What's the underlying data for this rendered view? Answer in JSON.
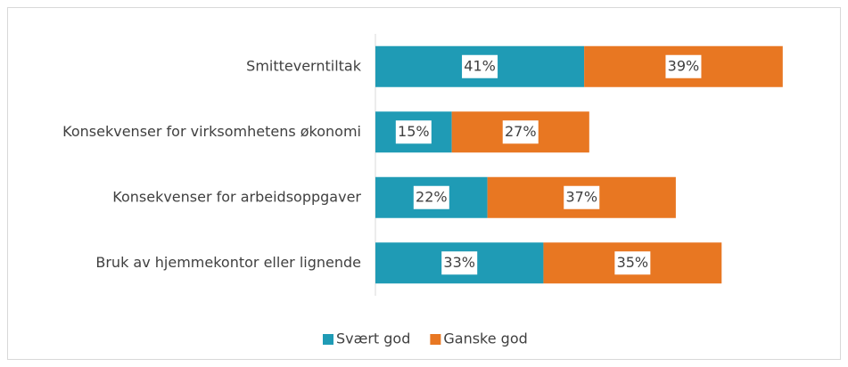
{
  "chart_data": {
    "type": "bar",
    "orientation": "horizontal",
    "stacked": true,
    "categories": [
      "Smitteverntiltak",
      "Konsekvenser for virksomhetens økonomi",
      "Konsekvenser for arbeidsoppgaver",
      "Bruk av hjemmekontor eller lignende"
    ],
    "series": [
      {
        "name": "Svært god",
        "color": "#1f9bb5",
        "values": [
          41,
          15,
          22,
          33
        ],
        "value_labels": [
          "41%",
          "15%",
          "22%",
          "33%"
        ]
      },
      {
        "name": "Ganske god",
        "color": "#e87722",
        "values": [
          39,
          27,
          37,
          35
        ],
        "value_labels": [
          "39%",
          "27%",
          "37%",
          "35%"
        ]
      }
    ],
    "legend": "bottom"
  }
}
